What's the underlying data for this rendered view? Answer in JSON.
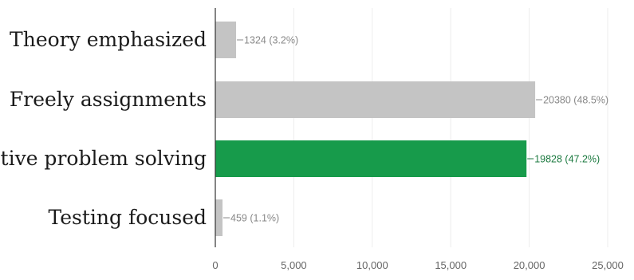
{
  "chart_data": {
    "type": "bar",
    "orientation": "horizontal",
    "categories": [
      "Theory emphasized",
      "Freely assignments",
      "Creative problem solving",
      "Testing focused"
    ],
    "values": [
      1324,
      20380,
      19828,
      459
    ],
    "data_labels": [
      "1324 (3.2%)",
      "20380 (48.5%)",
      "19828 (47.2%)",
      "459 (1.1%)"
    ],
    "highlight_index": 2,
    "xlim": [
      0,
      25000
    ],
    "x_ticks": [
      0,
      5000,
      10000,
      15000,
      20000,
      25000
    ],
    "x_tick_labels": [
      "0",
      "5,000",
      "10,000",
      "15,000",
      "20,000",
      "25,000"
    ],
    "grid": true,
    "colors": {
      "bar_default": "#c4c4c4",
      "bar_highlight": "#179b4b",
      "label_default": "#888888",
      "label_highlight": "#1c7a40",
      "axis": "#333333",
      "grid": "#ececec"
    }
  }
}
